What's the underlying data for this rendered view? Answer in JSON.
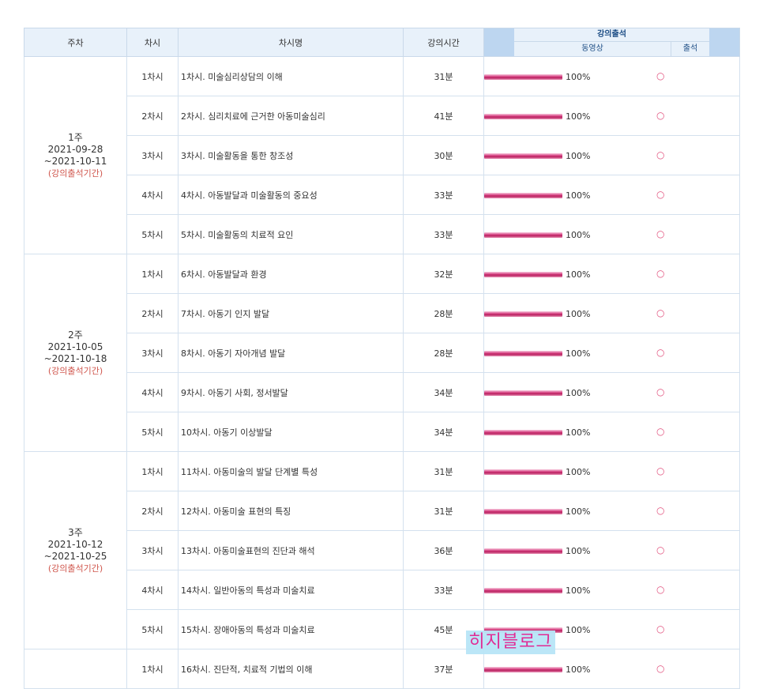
{
  "headers": {
    "week": "주차",
    "session": "차시",
    "session_name": "차시명",
    "duration": "강의시간",
    "attendance": "강의출석",
    "video": "동영상",
    "present": "출석"
  },
  "weeks": [
    {
      "label": "1주",
      "start": "2021-09-28",
      "end": "~2021-10-11",
      "period": "(강의출석기간)",
      "rows": [
        {
          "num": "1차시",
          "name": "1차시. 미술심리상담의 이해",
          "time": "31분",
          "progress": "100%",
          "progress_value": 100,
          "attend": "○"
        },
        {
          "num": "2차시",
          "name": "2차시. 심리치료에 근거한 아동미술심리",
          "time": "41분",
          "progress": "100%",
          "progress_value": 100,
          "attend": "○"
        },
        {
          "num": "3차시",
          "name": "3차시. 미술활동을 통한 창조성",
          "time": "30분",
          "progress": "100%",
          "progress_value": 100,
          "attend": "○"
        },
        {
          "num": "4차시",
          "name": "4차시. 아동발달과 미술활동의 중요성",
          "time": "33분",
          "progress": "100%",
          "progress_value": 100,
          "attend": "○"
        },
        {
          "num": "5차시",
          "name": "5차시. 미술활동의 치료적 요인",
          "time": "33분",
          "progress": "100%",
          "progress_value": 100,
          "attend": "○"
        }
      ]
    },
    {
      "label": "2주",
      "start": "2021-10-05",
      "end": "~2021-10-18",
      "period": "(강의출석기간)",
      "rows": [
        {
          "num": "1차시",
          "name": "6차시. 아동발달과 환경",
          "time": "32분",
          "progress": "100%",
          "progress_value": 100,
          "attend": "○"
        },
        {
          "num": "2차시",
          "name": "7차시. 아동기 인지 발달",
          "time": "28분",
          "progress": "100%",
          "progress_value": 100,
          "attend": "○"
        },
        {
          "num": "3차시",
          "name": "8차시. 아동기 자아개념 발달",
          "time": "28분",
          "progress": "100%",
          "progress_value": 100,
          "attend": "○"
        },
        {
          "num": "4차시",
          "name": "9차시. 아동기 사회, 정서발달",
          "time": "34분",
          "progress": "100%",
          "progress_value": 100,
          "attend": "○"
        },
        {
          "num": "5차시",
          "name": "10차시. 아동기 이상발달",
          "time": "34분",
          "progress": "100%",
          "progress_value": 100,
          "attend": "○"
        }
      ]
    },
    {
      "label": "3주",
      "start": "2021-10-12",
      "end": "~2021-10-25",
      "period": "(강의출석기간)",
      "rows": [
        {
          "num": "1차시",
          "name": "11차시. 아동미술의 발달 단계별 특성",
          "time": "31분",
          "progress": "100%",
          "progress_value": 100,
          "attend": "○"
        },
        {
          "num": "2차시",
          "name": "12차시. 아동미술 표현의 특징",
          "time": "31분",
          "progress": "100%",
          "progress_value": 100,
          "attend": "○"
        },
        {
          "num": "3차시",
          "name": "13차시. 아동미술표현의 진단과 해석",
          "time": "36분",
          "progress": "100%",
          "progress_value": 100,
          "attend": "○"
        },
        {
          "num": "4차시",
          "name": "14차시. 일반아동의 특성과 미술치료",
          "time": "33분",
          "progress": "100%",
          "progress_value": 100,
          "attend": "○"
        },
        {
          "num": "5차시",
          "name": "15차시. 장애아동의 특성과 미술치료",
          "time": "45분",
          "progress": "100%",
          "progress_value": 100,
          "attend": "○"
        }
      ]
    },
    {
      "label": "",
      "start": "",
      "end": "",
      "period": "",
      "rows": [
        {
          "num": "1차시",
          "name": "16차시. 진단적, 치료적 기법의 이해",
          "time": "37분",
          "progress": "100%",
          "progress_value": 100,
          "attend": "○"
        }
      ]
    }
  ],
  "watermark": "히지블로그",
  "colors": {
    "header_bg": "#e8f1fa",
    "accent_blue": "#1f4f86",
    "bar": "#d43b7d",
    "period_red": "#d0574e"
  }
}
